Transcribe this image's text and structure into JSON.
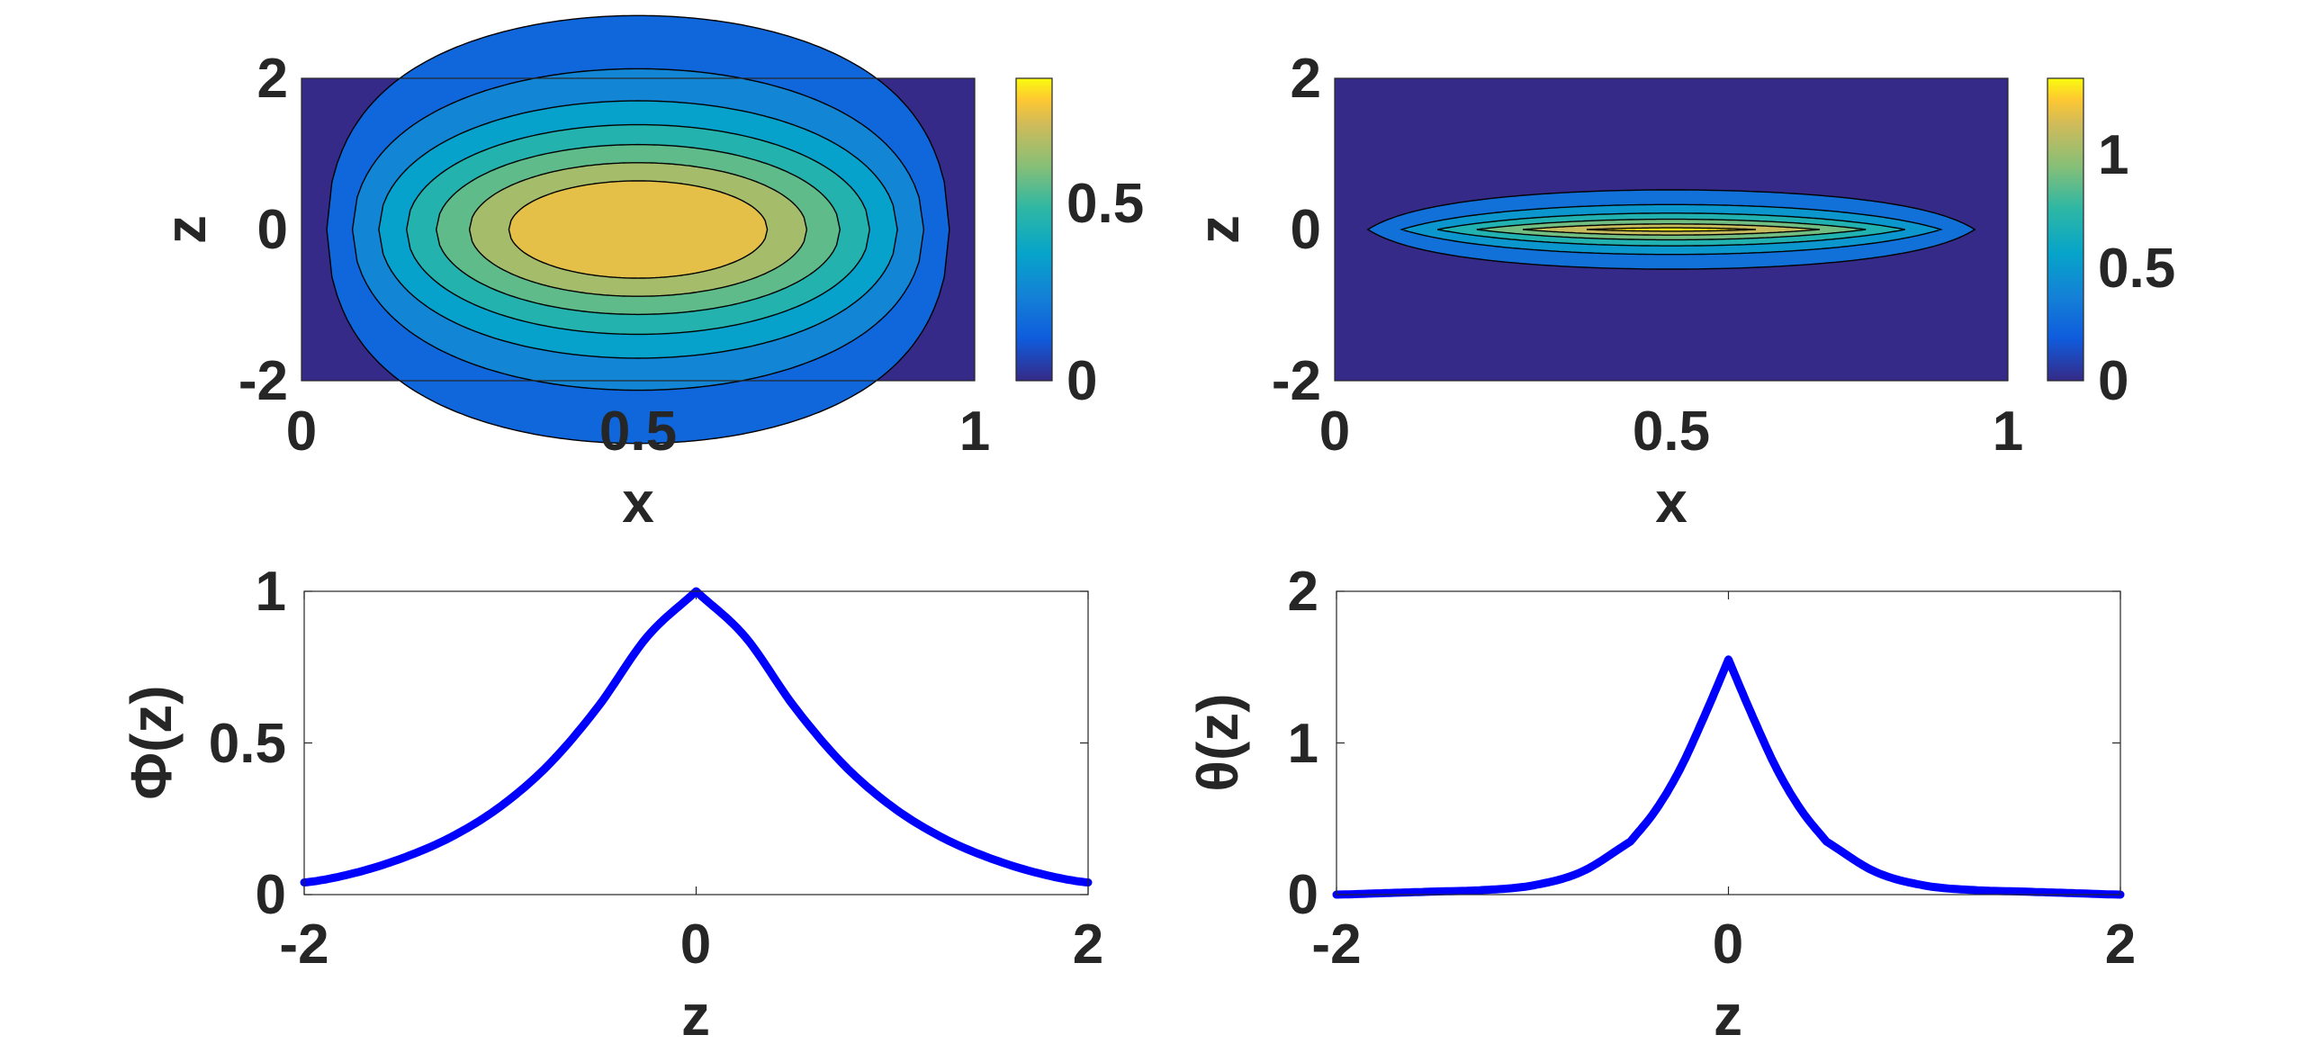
{
  "chart_data": [
    {
      "type": "heatmap",
      "subtype": "filled-contour",
      "xlabel": "x",
      "ylabel": "z",
      "xlim": [
        0,
        1
      ],
      "ylim": [
        -2,
        2
      ],
      "xticks": [
        "0",
        "0.5",
        "1"
      ],
      "yticks": [
        "-2",
        "0",
        "2"
      ],
      "colorbar": {
        "ticks": [
          "0",
          "0.5"
        ],
        "range": [
          0,
          0.85
        ],
        "colormap": "parula"
      },
      "levels": [
        0.0,
        0.1,
        0.2,
        0.3,
        0.4,
        0.5,
        0.6,
        0.7
      ],
      "peak": {
        "x": 0.5,
        "z": 0,
        "value": 0.85
      }
    },
    {
      "type": "heatmap",
      "subtype": "filled-contour",
      "xlabel": "x",
      "ylabel": "z",
      "xlim": [
        0,
        1
      ],
      "ylim": [
        -2,
        2
      ],
      "xticks": [
        "0",
        "0.5",
        "1"
      ],
      "yticks": [
        "-2",
        "0",
        "2"
      ],
      "colorbar": {
        "ticks": [
          "0",
          "0.5",
          "1"
        ],
        "range": [
          0,
          1.3
        ],
        "colormap": "parula"
      },
      "levels": [
        0.0,
        0.2,
        0.4,
        0.6,
        0.8,
        1.0,
        1.2
      ],
      "peak": {
        "x": 0.5,
        "z": 0,
        "value": 1.3
      }
    },
    {
      "type": "line",
      "xlabel": "z",
      "ylabel": "Φ(z)",
      "xlim": [
        -2,
        2
      ],
      "ylim": [
        0,
        1
      ],
      "xticks": [
        "-2",
        "0",
        "2"
      ],
      "yticks": [
        "0",
        "0.5",
        "1"
      ],
      "series": [
        {
          "color": "#0000ff",
          "x": [
            -2.0,
            -1.75,
            -1.5,
            -1.25,
            -1.0,
            -0.75,
            -0.5,
            -0.25,
            0.0,
            0.25,
            0.5,
            0.75,
            1.0,
            1.25,
            1.5,
            1.75,
            2.0
          ],
          "y": [
            0.04,
            0.07,
            0.12,
            0.19,
            0.29,
            0.43,
            0.62,
            0.85,
            1.0,
            0.85,
            0.62,
            0.43,
            0.29,
            0.19,
            0.12,
            0.07,
            0.04
          ]
        }
      ]
    },
    {
      "type": "line",
      "xlabel": "z",
      "ylabel": "θ(z)",
      "xlim": [
        -2,
        2
      ],
      "ylim": [
        0,
        2
      ],
      "xticks": [
        "-2",
        "0",
        "2"
      ],
      "yticks": [
        "0",
        "1",
        "2"
      ],
      "series": [
        {
          "color": "#0000ff",
          "x": [
            -2.0,
            -1.75,
            -1.5,
            -1.25,
            -1.0,
            -0.75,
            -0.5,
            -0.375,
            -0.25,
            -0.125,
            0.0,
            0.125,
            0.25,
            0.375,
            0.5,
            0.75,
            1.0,
            1.25,
            1.5,
            1.75,
            2.0
          ],
          "y": [
            0.0,
            0.01,
            0.02,
            0.03,
            0.06,
            0.15,
            0.35,
            0.55,
            0.82,
            1.17,
            1.55,
            1.17,
            0.82,
            0.55,
            0.35,
            0.15,
            0.06,
            0.03,
            0.02,
            0.01,
            0.0
          ]
        }
      ]
    }
  ]
}
